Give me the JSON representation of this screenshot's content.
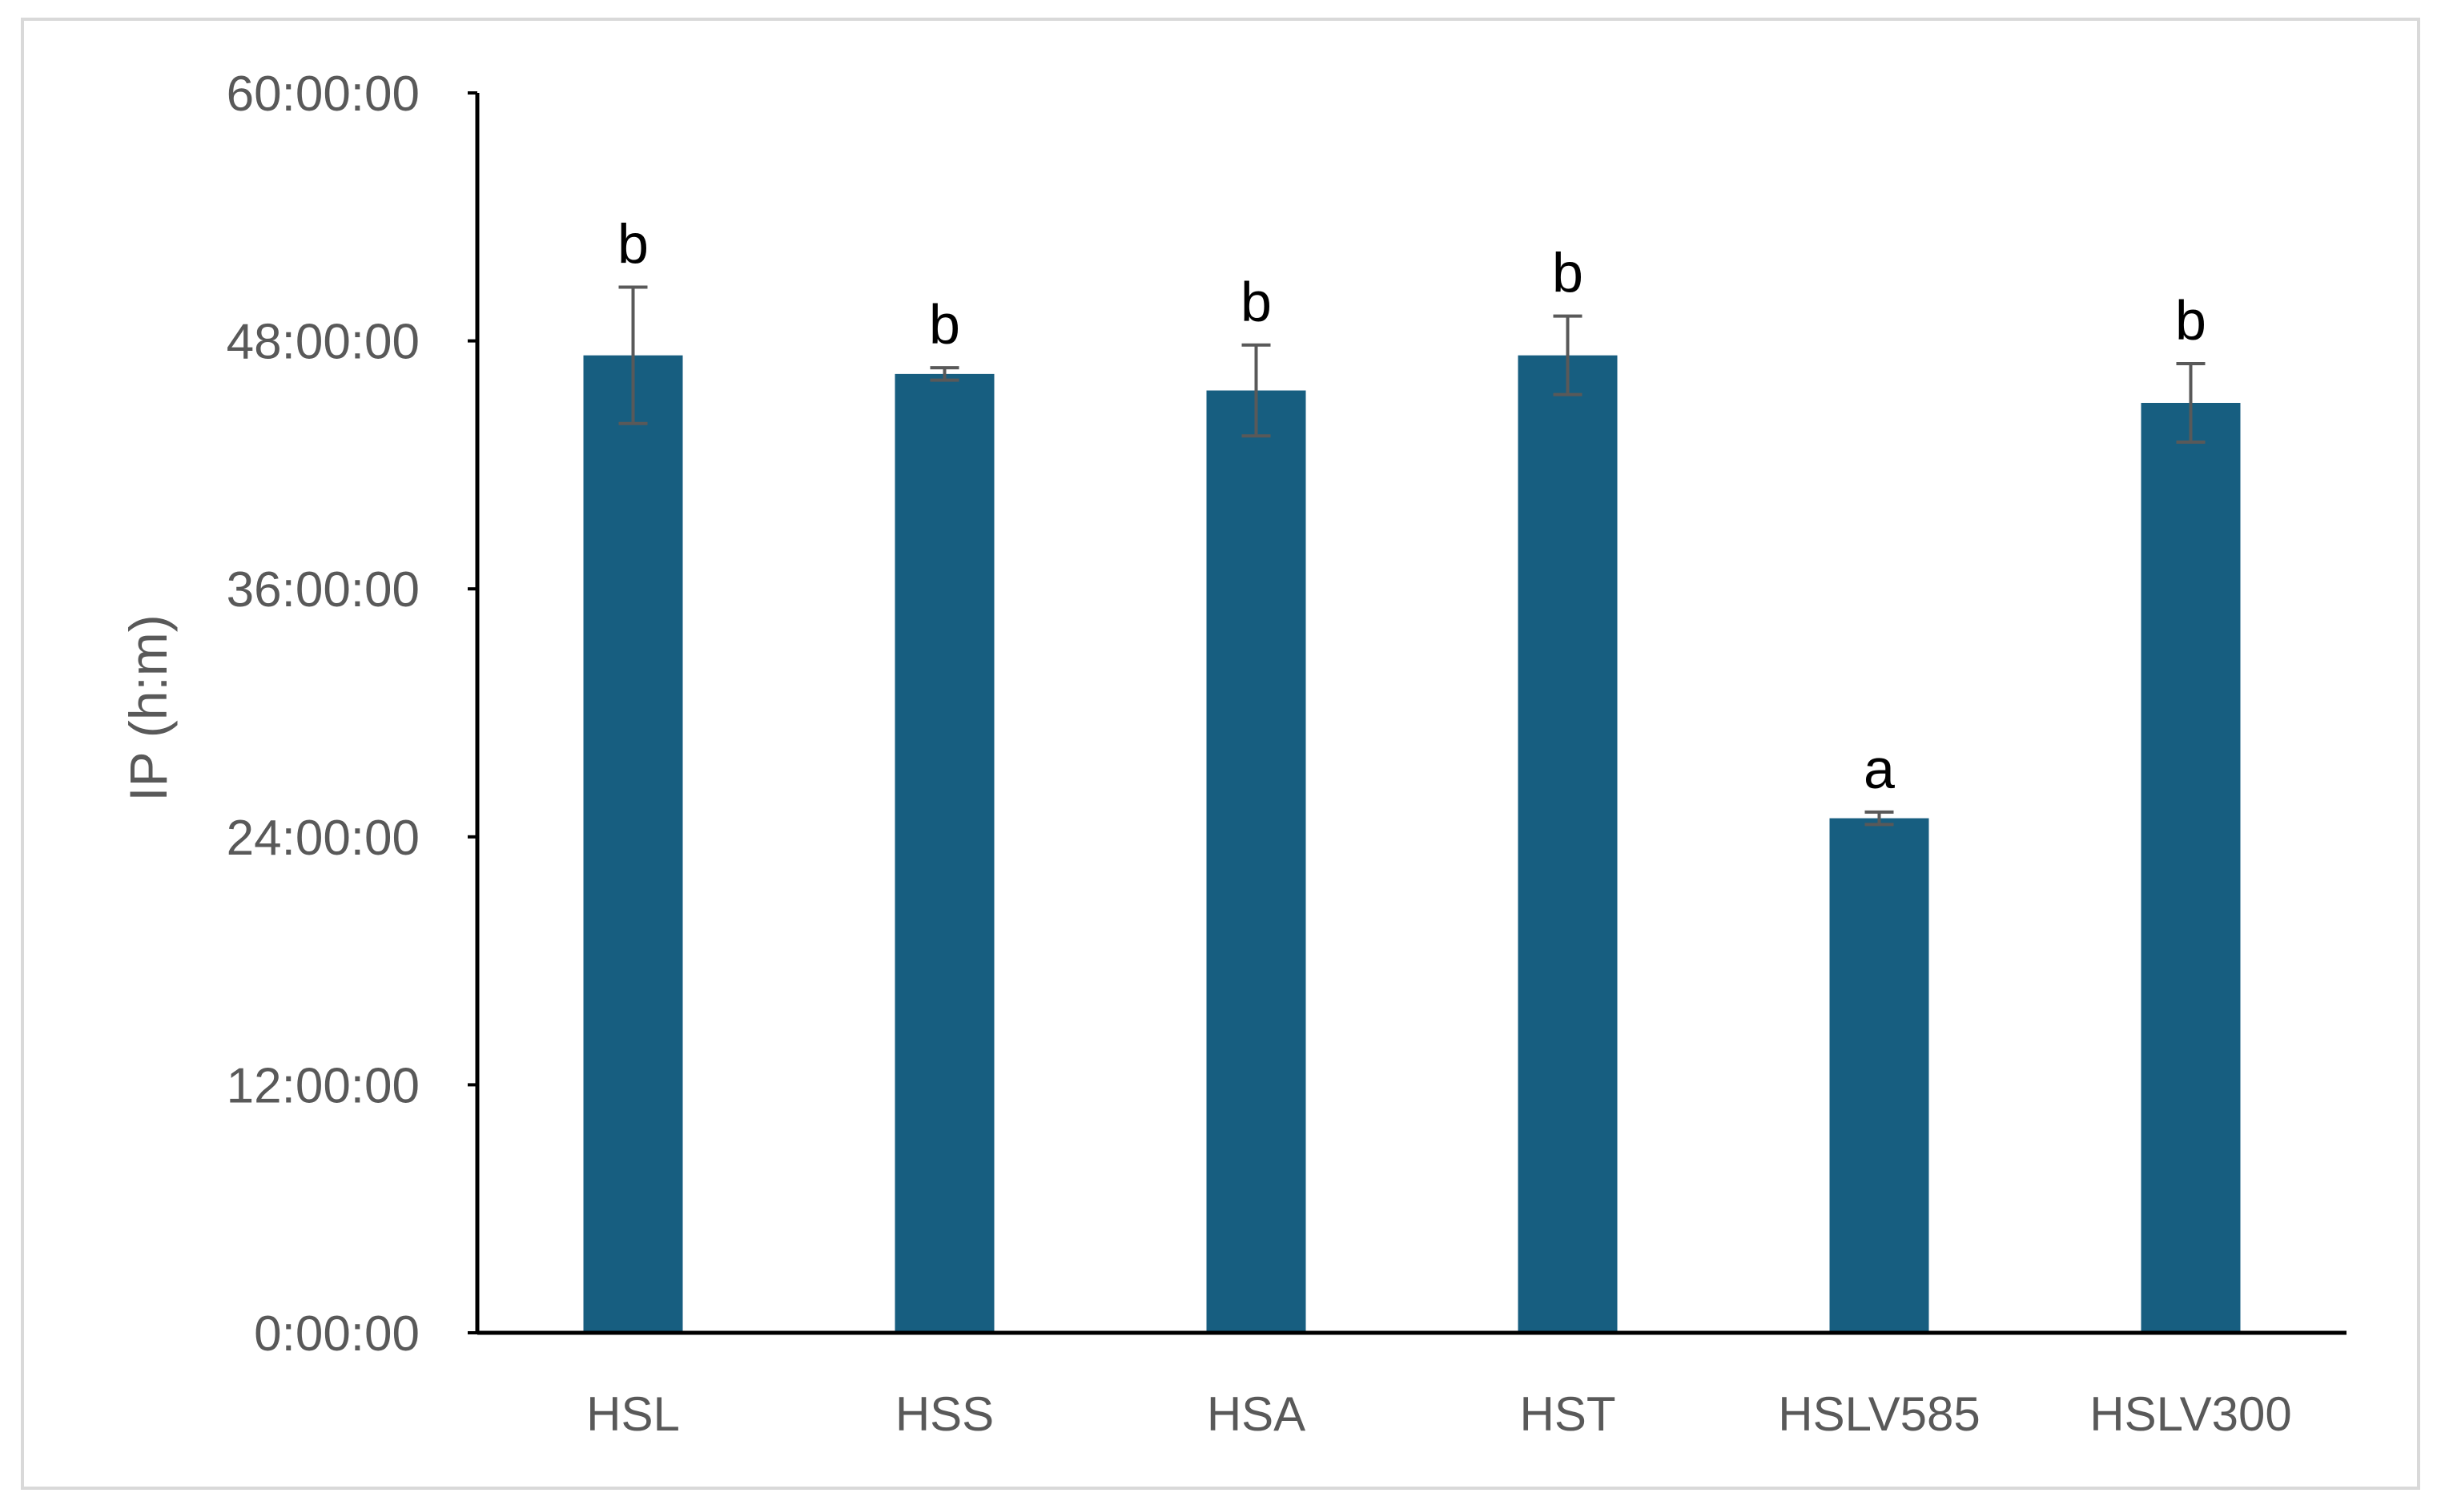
{
  "chart_data": {
    "type": "bar",
    "title": "",
    "xlabel": "",
    "ylabel": "IP (h:m)",
    "y_unit": "hours",
    "ylim": [
      0,
      60
    ],
    "yticks": [
      0,
      12,
      24,
      36,
      48,
      60
    ],
    "ytick_labels": [
      "0:00:00",
      "12:00:00",
      "24:00:00",
      "36:00:00",
      "48:00:00",
      "60:00:00"
    ],
    "categories": [
      "HSL",
      "HSS",
      "HSA",
      "HST",
      "HSLV585",
      "HSLV300"
    ],
    "series": [
      {
        "values": [
          47.3,
          46.4,
          45.6,
          47.3,
          24.9,
          45.0
        ],
        "errors": [
          3.3,
          0.3,
          2.2,
          1.9,
          0.3,
          1.9
        ],
        "significance": [
          "b",
          "b",
          "b",
          "b",
          "a",
          "b"
        ]
      }
    ],
    "grid": false,
    "legend": "none",
    "colors": {
      "bar": "#175e80",
      "error_bar": "#595959",
      "axis": "#000000",
      "frame": "#d9d9d9"
    }
  }
}
